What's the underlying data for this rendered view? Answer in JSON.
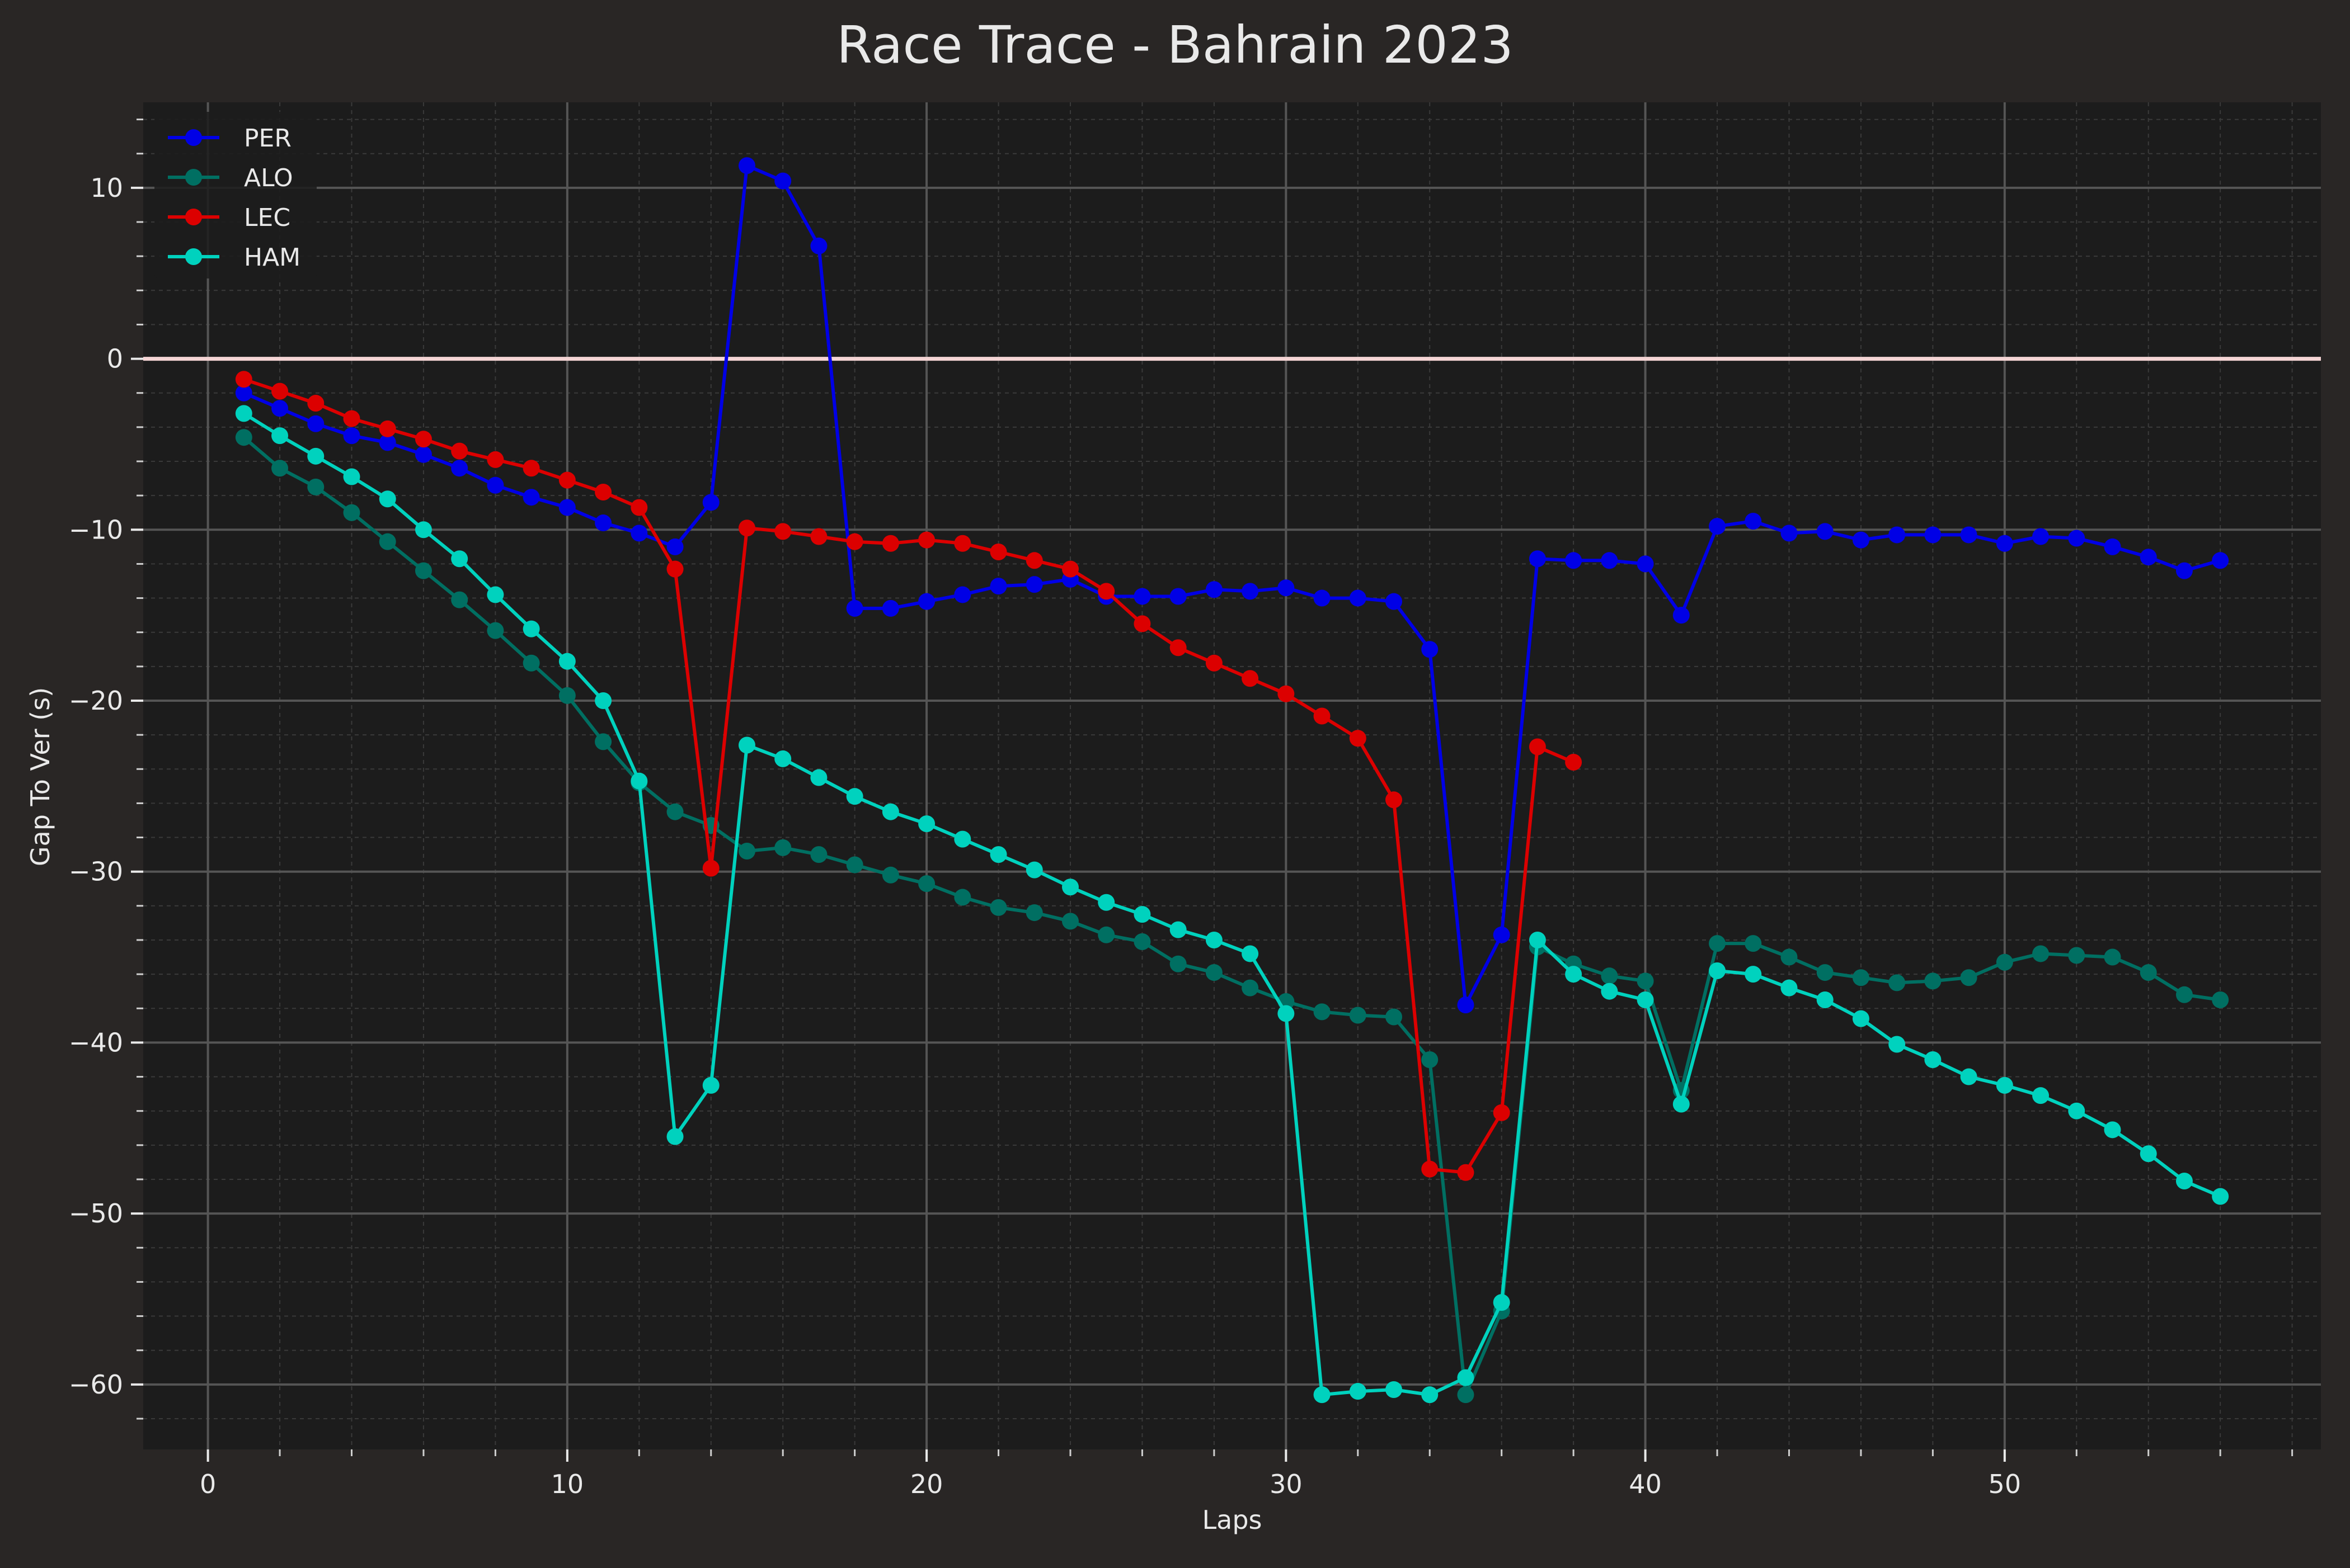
{
  "chart_data": {
    "type": "line",
    "title": "Race Trace - Bahrain 2023",
    "xlabel": "Laps",
    "ylabel": "Gap To Ver (s)",
    "xlim": [
      -1.8,
      58.8
    ],
    "ylim": [
      -63.8,
      15
    ],
    "xticks": [
      0,
      10,
      20,
      30,
      40,
      50
    ],
    "yticks": [
      10,
      0,
      -10,
      -20,
      -30,
      -40,
      -50,
      -60
    ],
    "xtick_labels": [
      "0",
      "10",
      "20",
      "30",
      "40",
      "50"
    ],
    "ytick_labels": [
      "10",
      "0",
      "−10",
      "−20",
      "−30",
      "−40",
      "−50",
      "−60"
    ],
    "grid": true,
    "reference_line": {
      "y": 0,
      "color": "#f4d4d4"
    },
    "legend_position": "top-left",
    "series": [
      {
        "name": "PER",
        "color": "#0000e6",
        "x": [
          1,
          2,
          3,
          4,
          5,
          6,
          7,
          8,
          9,
          10,
          11,
          12,
          13,
          14,
          15,
          16,
          17,
          18,
          19,
          20,
          21,
          22,
          23,
          24,
          25,
          26,
          27,
          28,
          29,
          30,
          31,
          32,
          33,
          34,
          35,
          36,
          37,
          38,
          39,
          40,
          41,
          42,
          43,
          44,
          45,
          46,
          47,
          48,
          49,
          50,
          51,
          52,
          53,
          54,
          55,
          56
        ],
        "y": [
          -2.0,
          -2.9,
          -3.8,
          -4.5,
          -4.9,
          -5.6,
          -6.4,
          -7.4,
          -8.1,
          -8.7,
          -9.6,
          -10.2,
          -11.0,
          -8.4,
          11.3,
          10.4,
          6.6,
          -14.6,
          -14.6,
          -14.2,
          -13.8,
          -13.3,
          -13.2,
          -12.9,
          -13.9,
          -13.9,
          -13.9,
          -13.5,
          -13.6,
          -13.4,
          -14.0,
          -14.0,
          -14.2,
          -17.0,
          -37.8,
          -33.7,
          -11.7,
          -11.8,
          -11.8,
          -12.0,
          -15.0,
          -9.8,
          -9.5,
          -10.2,
          -10.1,
          -10.6,
          -10.3,
          -10.3,
          -10.3,
          -10.8,
          -10.4,
          -10.5,
          -11.0,
          -11.6,
          -12.4,
          -11.8
        ]
      },
      {
        "name": "ALO",
        "color": "#006f62",
        "x": [
          1,
          2,
          3,
          4,
          5,
          6,
          7,
          8,
          9,
          10,
          11,
          12,
          13,
          14,
          15,
          16,
          17,
          18,
          19,
          20,
          21,
          22,
          23,
          24,
          25,
          26,
          27,
          28,
          29,
          30,
          31,
          32,
          33,
          34,
          35,
          36,
          37,
          38,
          39,
          40,
          41,
          42,
          43,
          44,
          45,
          46,
          47,
          48,
          49,
          50,
          51,
          52,
          53,
          54,
          55,
          56
        ],
        "y": [
          -4.6,
          -6.4,
          -7.5,
          -9.0,
          -10.7,
          -12.4,
          -14.1,
          -15.9,
          -17.8,
          -19.7,
          -22.4,
          -24.8,
          -26.5,
          -27.3,
          -28.8,
          -28.6,
          -29.0,
          -29.6,
          -30.2,
          -30.7,
          -31.5,
          -32.1,
          -32.4,
          -32.9,
          -33.7,
          -34.1,
          -35.4,
          -35.9,
          -36.8,
          -37.6,
          -38.2,
          -38.4,
          -38.5,
          -41.0,
          -60.6,
          -55.7,
          -34.4,
          -35.4,
          -36.1,
          -36.4,
          -42.8,
          -34.2,
          -34.2,
          -35.0,
          -35.9,
          -36.2,
          -36.5,
          -36.4,
          -36.2,
          -35.3,
          -34.8,
          -34.9,
          -35.0,
          -35.9,
          -37.2,
          -37.5
        ]
      },
      {
        "name": "LEC",
        "color": "#dc0000",
        "x": [
          1,
          2,
          3,
          4,
          5,
          6,
          7,
          8,
          9,
          10,
          11,
          12,
          13,
          14,
          15,
          16,
          17,
          18,
          19,
          20,
          21,
          22,
          23,
          24,
          25,
          26,
          27,
          28,
          29,
          30,
          31,
          32,
          33,
          34,
          35,
          36,
          37,
          38
        ],
        "y": [
          -1.2,
          -1.9,
          -2.6,
          -3.5,
          -4.1,
          -4.7,
          -5.4,
          -5.9,
          -6.4,
          -7.1,
          -7.8,
          -8.7,
          -12.3,
          -29.8,
          -9.9,
          -10.1,
          -10.4,
          -10.7,
          -10.8,
          -10.6,
          -10.8,
          -11.3,
          -11.8,
          -12.3,
          -13.6,
          -15.5,
          -16.9,
          -17.8,
          -18.7,
          -19.6,
          -20.9,
          -22.2,
          -25.8,
          -47.4,
          -47.6,
          -44.1,
          -22.7,
          -23.6
        ]
      },
      {
        "name": "HAM",
        "color": "#00d2be",
        "x": [
          1,
          2,
          3,
          4,
          5,
          6,
          7,
          8,
          9,
          10,
          11,
          12,
          13,
          14,
          15,
          16,
          17,
          18,
          19,
          20,
          21,
          22,
          23,
          24,
          25,
          26,
          27,
          28,
          29,
          30,
          31,
          32,
          33,
          34,
          35,
          36,
          37,
          38,
          39,
          40,
          41,
          42,
          43,
          44,
          45,
          46,
          47,
          48,
          49,
          50,
          51,
          52,
          53,
          54,
          55,
          56
        ],
        "y": [
          -3.2,
          -4.5,
          -5.7,
          -6.9,
          -8.2,
          -10.0,
          -11.7,
          -13.8,
          -15.8,
          -17.7,
          -20.0,
          -24.7,
          -45.5,
          -42.5,
          -22.6,
          -23.4,
          -24.5,
          -25.6,
          -26.5,
          -27.2,
          -28.1,
          -29.0,
          -29.9,
          -30.9,
          -31.8,
          -32.5,
          -33.4,
          -34.0,
          -34.8,
          -38.3,
          -60.6,
          -60.4,
          -60.3,
          -60.6,
          -59.6,
          -55.2,
          -34.0,
          -36.0,
          -37.0,
          -37.5,
          -43.6,
          -35.8,
          -36.0,
          -36.8,
          -37.5,
          -38.6,
          -40.1,
          -41.0,
          -42.0,
          -42.5,
          -43.1,
          -44.0,
          -45.1,
          -46.5,
          -48.1,
          -49.0
        ]
      }
    ]
  }
}
